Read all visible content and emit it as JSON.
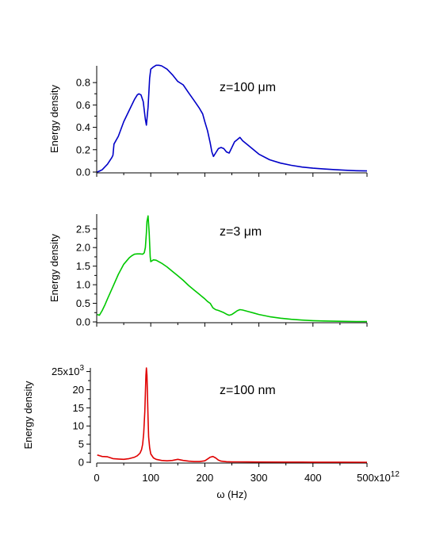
{
  "x_axis": {
    "label": "ω  (Hz)",
    "range": [
      0,
      500
    ],
    "ticks": [
      0,
      100,
      200,
      300,
      400,
      500
    ],
    "tick_labels": [
      "0",
      "100",
      "200",
      "300",
      "400",
      "500x10"
    ],
    "exponent": "12"
  },
  "chart_data": [
    {
      "type": "line",
      "ylabel": "Energy density",
      "annotation": "z=100 μm",
      "xlim": [
        0,
        500
      ],
      "ylim": [
        0,
        0.95
      ],
      "yticks": [
        0.0,
        0.2,
        0.4,
        0.6,
        0.8
      ],
      "ytick_labels": [
        "0.0",
        "0.2",
        "0.4",
        "0.6",
        "0.8"
      ],
      "color": "#0000c8",
      "x": [
        1,
        10,
        20,
        28,
        30,
        32,
        40,
        50,
        60,
        70,
        75,
        78,
        82,
        86,
        90,
        92,
        95,
        98,
        100,
        105,
        110,
        115,
        120,
        130,
        140,
        150,
        160,
        170,
        180,
        190,
        196,
        200,
        205,
        210,
        213,
        216,
        220,
        225,
        230,
        235,
        240,
        245,
        250,
        255,
        260,
        265,
        270,
        280,
        290,
        300,
        320,
        340,
        360,
        380,
        400,
        420,
        440,
        460,
        480,
        500
      ],
      "y": [
        0.0,
        0.02,
        0.07,
        0.13,
        0.15,
        0.25,
        0.32,
        0.45,
        0.55,
        0.65,
        0.69,
        0.7,
        0.69,
        0.63,
        0.47,
        0.42,
        0.58,
        0.84,
        0.92,
        0.94,
        0.955,
        0.955,
        0.95,
        0.92,
        0.87,
        0.81,
        0.78,
        0.71,
        0.64,
        0.57,
        0.52,
        0.45,
        0.37,
        0.26,
        0.18,
        0.14,
        0.17,
        0.21,
        0.22,
        0.21,
        0.18,
        0.17,
        0.22,
        0.27,
        0.29,
        0.31,
        0.28,
        0.24,
        0.2,
        0.16,
        0.11,
        0.08,
        0.06,
        0.045,
        0.035,
        0.028,
        0.022,
        0.016,
        0.012,
        0.01
      ]
    },
    {
      "type": "line",
      "ylabel": "Energy density",
      "annotation": "z=3 μm",
      "xlim": [
        0,
        500
      ],
      "ylim": [
        0,
        2.9
      ],
      "yticks": [
        0.0,
        0.5,
        1.0,
        1.5,
        2.0,
        2.5
      ],
      "ytick_labels": [
        "0.0",
        "0.5",
        "1.0",
        "1.5",
        "2.0",
        "2.5"
      ],
      "color": "#00c800",
      "x": [
        1,
        5,
        10,
        15,
        20,
        30,
        40,
        50,
        60,
        65,
        70,
        75,
        80,
        85,
        88,
        90,
        92,
        93,
        95,
        97,
        99,
        100,
        105,
        110,
        120,
        130,
        140,
        150,
        160,
        170,
        180,
        190,
        200,
        205,
        210,
        215,
        220,
        225,
        230,
        235,
        240,
        245,
        250,
        255,
        260,
        265,
        270,
        280,
        290,
        300,
        320,
        340,
        360,
        380,
        400,
        420,
        440,
        460,
        480,
        500
      ],
      "y": [
        0.2,
        0.18,
        0.3,
        0.45,
        0.62,
        0.95,
        1.28,
        1.55,
        1.72,
        1.78,
        1.82,
        1.83,
        1.83,
        1.82,
        1.86,
        2.0,
        2.4,
        2.7,
        2.85,
        2.4,
        1.75,
        1.62,
        1.67,
        1.66,
        1.58,
        1.48,
        1.36,
        1.24,
        1.12,
        0.98,
        0.86,
        0.74,
        0.62,
        0.55,
        0.5,
        0.38,
        0.33,
        0.31,
        0.28,
        0.25,
        0.21,
        0.18,
        0.2,
        0.25,
        0.3,
        0.33,
        0.32,
        0.28,
        0.24,
        0.2,
        0.14,
        0.1,
        0.07,
        0.05,
        0.035,
        0.025,
        0.02,
        0.015,
        0.01,
        0.01
      ]
    },
    {
      "type": "line",
      "ylabel": "Energy density",
      "annotation": "z=100 nm",
      "xlim": [
        0,
        500
      ],
      "ylim": [
        0,
        26000
      ],
      "yticks": [
        0,
        5000,
        10000,
        15000,
        20000,
        25000
      ],
      "ytick_labels": [
        "0",
        "5",
        "10",
        "15",
        "20",
        "25x10"
      ],
      "ytick_exponent": "3",
      "color": "#e00000",
      "x": [
        1,
        10,
        20,
        30,
        40,
        50,
        60,
        70,
        75,
        80,
        83,
        85,
        87,
        89,
        90,
        91,
        92,
        93,
        94,
        95,
        96,
        98,
        100,
        105,
        110,
        120,
        130,
        140,
        150,
        160,
        170,
        180,
        190,
        200,
        205,
        210,
        215,
        220,
        225,
        230,
        240,
        250,
        260,
        280,
        300,
        350,
        400,
        450,
        500
      ],
      "y": [
        2000,
        1600,
        1500,
        1000,
        900,
        800,
        1000,
        1400,
        1800,
        2500,
        3500,
        5000,
        8000,
        14000,
        19000,
        24000,
        26000,
        24000,
        18000,
        12000,
        7000,
        4000,
        2300,
        1200,
        800,
        500,
        400,
        500,
        800,
        500,
        300,
        200,
        200,
        400,
        900,
        1400,
        1600,
        1200,
        600,
        300,
        150,
        120,
        100,
        80,
        60,
        40,
        30,
        20,
        10
      ]
    }
  ]
}
